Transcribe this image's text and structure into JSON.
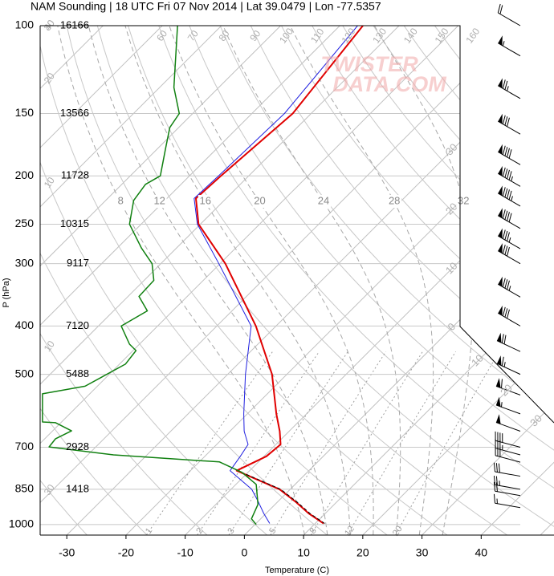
{
  "chart_data": {
    "type": "skew-t",
    "title": "NAM Sounding | 18 UTC Fri 07 Nov 2014 | Lat 39.0479 | Lon -77.5357",
    "x_label": "Temperature (C)",
    "y_label": "P (hPa)",
    "watermark": [
      "TWISTER",
      "DATA.COM"
    ],
    "log_y": true,
    "grid": true,
    "xlim": [
      -34.5,
      52.3
    ],
    "ylim": [
      100,
      1050
    ],
    "xticks": [
      -30,
      -20,
      -10,
      0,
      10,
      20,
      30,
      40
    ],
    "yticks": [
      100,
      150,
      200,
      250,
      300,
      400,
      500,
      700,
      850,
      1000
    ],
    "series": [
      {
        "color": "#e00000",
        "width": 2,
        "skew": true,
        "pressure": [
          995,
          950,
          900,
          850,
          780,
          730,
          691,
          650,
          600,
          500,
          400,
          300,
          250,
          222,
          200,
          150,
          100
        ],
        "values": [
          11.4,
          7.2,
          3.0,
          -1.8,
          -12.2,
          -9.6,
          -9.2,
          -11.6,
          -15.1,
          -22.5,
          -33.4,
          -49.1,
          -60.3,
          -65.1,
          -64.7,
          -63.1,
          -66.1
        ]
      },
      {
        "color": "#2020e0",
        "width": 1,
        "skew": true,
        "pressure": [
          995,
          950,
          900,
          850,
          780,
          730,
          691,
          650,
          600,
          500,
          400,
          300,
          250,
          222,
          200,
          150,
          100
        ],
        "values": [
          2.3,
          -0.4,
          -3.3,
          -6.5,
          -13.3,
          -14.0,
          -14.7,
          -17.6,
          -20.6,
          -27.0,
          -34.2,
          -50.2,
          -60.5,
          -65.4,
          -65.1,
          -64.5,
          -67.0
        ]
      },
      {
        "color": "#000000",
        "width": 1,
        "dash": true,
        "skew": true,
        "pressure": [
          995,
          950,
          900,
          850,
          780
        ],
        "values": [
          11.6,
          7.4,
          3.2,
          -1.6,
          -12.0
        ]
      },
      {
        "color": "#108010",
        "width": 1.5,
        "skew": false,
        "pressure": [
          1000,
          974,
          911,
          831,
          786,
          749,
          725,
          699,
          673,
          649,
          625,
          623,
          547,
          528,
          477,
          448,
          435,
          400,
          373,
          349,
          324,
          300,
          279,
          250,
          224,
          208,
          200,
          176,
          160,
          150,
          133,
          100
        ],
        "values": [
          2.0,
          1.2,
          2.3,
          2.0,
          -0.4,
          -4.2,
          -22.1,
          -33.0,
          -31.9,
          -29.2,
          -31.9,
          -34.1,
          -34.1,
          -26.9,
          -20.1,
          -18.3,
          -19.4,
          -20.8,
          -16.4,
          -17.8,
          -15.3,
          -15.6,
          -17.4,
          -19.4,
          -18.7,
          -16.7,
          -14.2,
          -13.3,
          -12.6,
          -11.0,
          -11.9,
          -11.3
        ]
      }
    ],
    "height_labels": {
      "pressure": [
        100,
        150,
        200,
        250,
        300,
        400,
        500,
        700,
        850
      ],
      "heights": [
        16166,
        13566,
        11728,
        10315,
        9117,
        7120,
        5488,
        2928,
        1418
      ]
    },
    "wind": {
      "pressure": [
        100,
        115,
        140,
        165,
        190,
        210,
        230,
        255,
        280,
        300,
        350,
        400,
        450,
        500,
        550,
        600,
        650,
        700,
        725,
        750,
        800,
        850,
        875,
        925
      ],
      "speed": [
        20,
        55,
        75,
        80,
        90,
        95,
        95,
        90,
        85,
        80,
        85,
        80,
        70,
        65,
        60,
        55,
        50,
        40,
        35,
        30,
        30,
        25,
        20,
        15
      ],
      "direction": [
        300,
        300,
        300,
        300,
        300,
        300,
        300,
        300,
        300,
        300,
        300,
        300,
        295,
        295,
        290,
        290,
        290,
        285,
        285,
        285,
        280,
        280,
        280,
        280
      ]
    },
    "isotherms": [
      -110,
      -100,
      -90,
      -80,
      -70,
      -60,
      -50,
      -40,
      -30,
      -20,
      -10,
      0,
      10,
      20,
      30,
      40,
      50
    ],
    "isotherm_labels": [
      {
        "value": -30,
        "label": "30"
      },
      {
        "value": -20,
        "label": "20"
      },
      {
        "value": -10,
        "label": "10"
      },
      0,
      10,
      20,
      30
    ],
    "dry_adiabats": [
      -30,
      -20,
      -10,
      0,
      10,
      20,
      30,
      40,
      50,
      60,
      70,
      80,
      90,
      100,
      110,
      120,
      130,
      140,
      150,
      160
    ],
    "dry_adiabat_labels_top": [
      60,
      70,
      80,
      90,
      100,
      110,
      120,
      130,
      140,
      150,
      160
    ],
    "dry_adiabat_labels_left": [
      40,
      30,
      20,
      10,
      {
        "value": -10,
        "label": "10"
      },
      {
        "value": -30,
        "label": "30"
      }
    ],
    "moist_adiabats": [
      8,
      12,
      16,
      20,
      24,
      28,
      32
    ],
    "mixing_ratios": [
      1,
      2,
      3,
      5,
      8,
      12,
      20
    ]
  }
}
